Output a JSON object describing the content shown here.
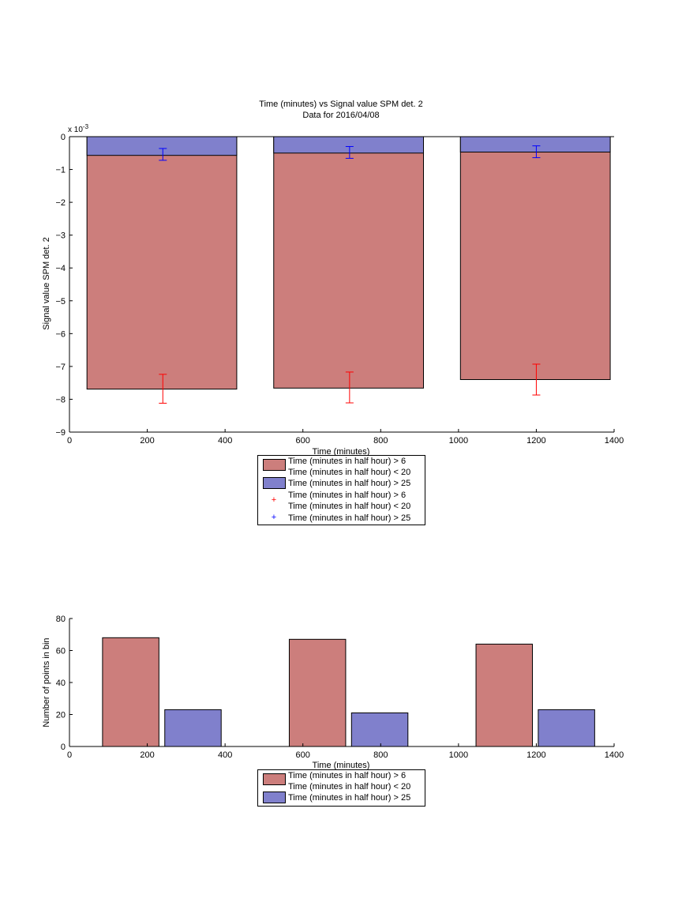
{
  "figure": {
    "title_line1": "Time (minutes) vs Signal value SPM det. 2",
    "title_line2": "Data for 2016/04/08"
  },
  "colors": {
    "red_fill": "#cc7e7c",
    "blue_fill": "#8080cc",
    "red_err": "#ff0000",
    "blue_err": "#0000ff",
    "axis": "#000000"
  },
  "chart_data": [
    {
      "type": "bar",
      "title": "Time (minutes) vs Signal value SPM det. 2",
      "subtitle": "Data for 2016/04/08",
      "xlabel": "Time (minutes)",
      "ylabel": "Signal value SPM det. 2",
      "y_exponent_label": "x 10",
      "y_exponent": "-3",
      "xlim": [
        0,
        1400
      ],
      "ylim": [
        -0.009,
        0
      ],
      "xticks": [
        "0",
        "200",
        "400",
        "600",
        "800",
        "1000",
        "1200",
        "1400"
      ],
      "yticks": [
        "0",
        "−1",
        "−2",
        "−3",
        "−4",
        "−5",
        "−6",
        "−7",
        "−8",
        "−9"
      ],
      "bar_ranges": [
        [
          45,
          430
        ],
        [
          525,
          910
        ],
        [
          1005,
          1390
        ]
      ],
      "series": [
        {
          "name": "Time (minutes in half hour) > 6 Time (minutes in half hour) < 20",
          "color": "#cc7e7c",
          "values": [
            -0.00769,
            -0.00766,
            -0.0074
          ],
          "err_x": [
            240,
            720,
            1200
          ],
          "err_center": [
            -0.00768,
            -0.00764,
            -0.0074
          ],
          "err_half": [
            0.00044,
            0.00047,
            0.00047
          ]
        },
        {
          "name": "Time (minutes in half hour) > 25",
          "color": "#8080cc",
          "values": [
            -0.00057,
            -0.0005,
            -0.00047
          ],
          "err_x": [
            240,
            720,
            1200
          ],
          "err_center": [
            -0.00054,
            -0.00048,
            -0.00046
          ],
          "err_half": [
            0.00018,
            0.00018,
            0.00018
          ]
        }
      ],
      "legend": [
        {
          "label_lines": [
            "Time (minutes in half hour) > 6",
            "Time (minutes in half hour) < 20"
          ],
          "kind": "bar",
          "color": "#cc7e7c"
        },
        {
          "label_lines": [
            "Time (minutes in half hour) > 25"
          ],
          "kind": "bar",
          "color": "#8080cc"
        },
        {
          "label_lines": [
            "Time (minutes in half hour) > 6",
            "Time (minutes in half hour) < 20"
          ],
          "kind": "marker",
          "marker": "+",
          "color": "#ff0000"
        },
        {
          "label_lines": [
            "Time (minutes in half hour) > 25"
          ],
          "kind": "marker",
          "marker": "+",
          "color": "#0000ff"
        }
      ],
      "legend_placement": "below"
    },
    {
      "type": "bar",
      "title": "",
      "xlabel": "Time (minutes)",
      "ylabel": "Number of points in bin",
      "xlim": [
        0,
        1400
      ],
      "ylim": [
        0,
        80
      ],
      "xticks": [
        "0",
        "200",
        "400",
        "600",
        "800",
        "1000",
        "1200",
        "1400"
      ],
      "yticks": [
        "0",
        "20",
        "40",
        "60",
        "80"
      ],
      "series": [
        {
          "name": "Time (minutes in half hour) > 6 Time (minutes in half hour) < 20",
          "color": "#cc7e7c",
          "x_ranges": [
            [
              85,
              230
            ],
            [
              565,
              710
            ],
            [
              1045,
              1190
            ]
          ],
          "values": [
            68,
            67,
            64
          ]
        },
        {
          "name": "Time (minutes in half hour) > 25",
          "color": "#8080cc",
          "x_ranges": [
            [
              245,
              390
            ],
            [
              725,
              870
            ],
            [
              1205,
              1350
            ]
          ],
          "values": [
            23,
            21,
            23
          ]
        }
      ],
      "legend": [
        {
          "label_lines": [
            "Time (minutes in half hour) > 6",
            "Time (minutes in half hour) < 20"
          ],
          "kind": "bar",
          "color": "#cc7e7c"
        },
        {
          "label_lines": [
            "Time (minutes in half hour) > 25"
          ],
          "kind": "bar",
          "color": "#8080cc"
        }
      ],
      "legend_placement": "below"
    }
  ]
}
